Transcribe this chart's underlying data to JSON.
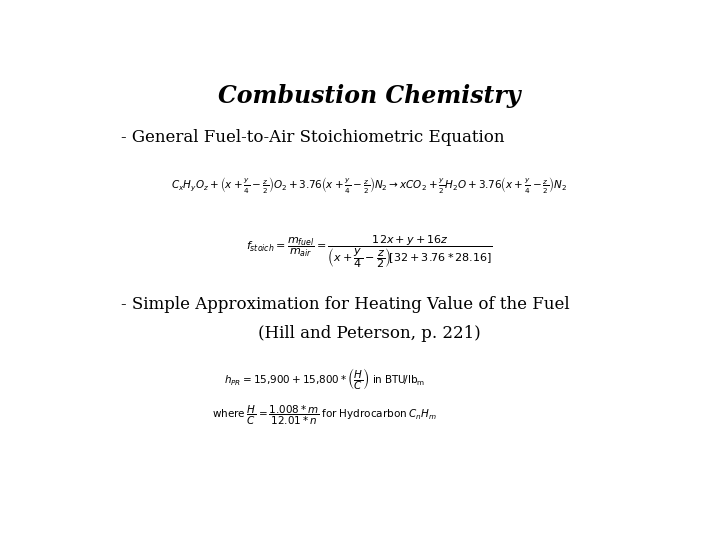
{
  "title": "Combustion Chemistry",
  "line1": "- General Fuel-to-Air Stoichiometric Equation",
  "line2a": "- Simple Approximation for Heating Value of the Fuel",
  "line2b": "(Hill and Peterson, p. 221)",
  "bg_color": "#ffffff",
  "text_color": "#000000",
  "title_fontsize": 17,
  "label_fontsize": 12,
  "eq_fontsize": 7.5,
  "eq2_fontsize": 8.0,
  "eq34_fontsize": 7.5
}
